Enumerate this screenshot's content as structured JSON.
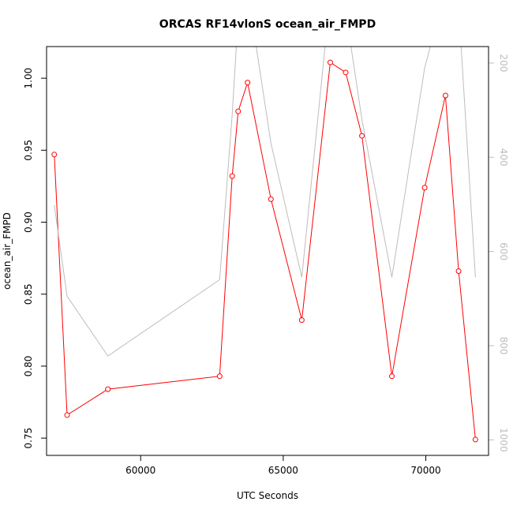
{
  "chart_data": {
    "type": "line",
    "title": "ORCAS RF14vlonS ocean_air_FMPD",
    "xlabel": "UTC Seconds",
    "ylabel": "ocean_air_FMPD",
    "xlim": [
      56700,
      72200
    ],
    "ylim": [
      0.738,
      1.022
    ],
    "y2lim": [
      1033,
      165
    ],
    "x_ticks": [
      60000,
      65000,
      70000
    ],
    "y_ticks": [
      0.75,
      0.8,
      0.85,
      0.9,
      0.95,
      1.0
    ],
    "y2_ticks": [
      200,
      400,
      600,
      800,
      1000
    ],
    "x_tick_labels": [
      "60000",
      "65000",
      "70000"
    ],
    "y_tick_labels": [
      "0.75",
      "0.80",
      "0.85",
      "0.90",
      "0.95",
      "1.00"
    ],
    "y2_tick_labels": [
      "200",
      "400",
      "600",
      "800",
      "1000"
    ],
    "grid": false,
    "colors": {
      "primary": "#ff0000",
      "secondary": "#bdbdbd",
      "frame": "#000000"
    },
    "series": [
      {
        "axis": "left",
        "color": "#ff0000",
        "markers": "open-circle",
        "x": [
          56970,
          57420,
          58850,
          62770,
          63210,
          63420,
          63750,
          64570,
          65650,
          66650,
          67190,
          67760,
          68810,
          69960,
          70690,
          71150,
          71740
        ],
        "y": [
          0.947,
          0.766,
          0.784,
          0.793,
          0.932,
          0.977,
          0.997,
          0.916,
          0.832,
          1.011,
          1.004,
          0.96,
          0.793,
          0.924,
          0.988,
          0.866,
          0.749
        ]
      },
      {
        "axis": "right",
        "color": "#bdbdbd",
        "markers": "none",
        "x": [
          56970,
          57420,
          58850,
          62770,
          63210,
          63420,
          63750,
          64570,
          65650,
          66650,
          67190,
          67760,
          68810,
          69960,
          70690,
          71150,
          71740
        ],
        "y": [
          502,
          695,
          822,
          660,
          310,
          100,
          45,
          370,
          655,
          55,
          90,
          320,
          655,
          210,
          45,
          80,
          655
        ]
      }
    ]
  }
}
